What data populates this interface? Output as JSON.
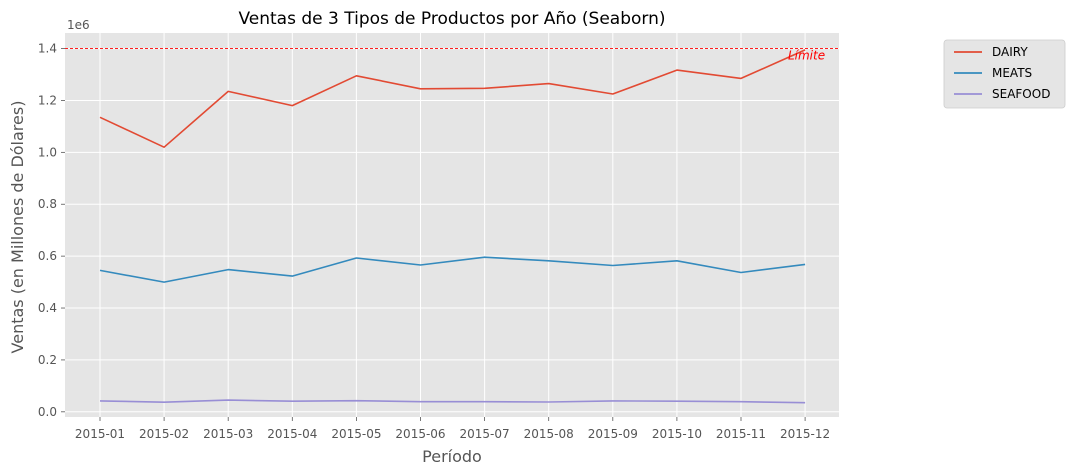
{
  "chart_data": {
    "type": "line",
    "title": "Ventas de 3 Tipos de Productos por Año (Seaborn)",
    "xlabel": "Período",
    "ylabel": "Ventas (en Millones de Dólares)",
    "y_offset_label": "1e6",
    "categories": [
      "2015-01",
      "2015-02",
      "2015-03",
      "2015-04",
      "2015-05",
      "2015-06",
      "2015-07",
      "2015-08",
      "2015-09",
      "2015-10",
      "2015-11",
      "2015-12"
    ],
    "yticks": [
      "0.0",
      "0.2",
      "0.4",
      "0.6",
      "0.8",
      "1.0",
      "1.2",
      "1.4"
    ],
    "ylim": [
      -0.02,
      1.46
    ],
    "grid": true,
    "legend_position": "outside-right-top",
    "series": [
      {
        "name": "DAIRY",
        "color": "#E24A33",
        "values": [
          1.135,
          1.02,
          1.235,
          1.18,
          1.295,
          1.245,
          1.247,
          1.265,
          1.225,
          1.317,
          1.285,
          1.395
        ]
      },
      {
        "name": "MEATS",
        "color": "#348ABD",
        "values": [
          0.545,
          0.5,
          0.548,
          0.523,
          0.593,
          0.566,
          0.596,
          0.582,
          0.564,
          0.582,
          0.537,
          0.568
        ]
      },
      {
        "name": "SEAFOOD",
        "color": "#988ED5",
        "values": [
          0.042,
          0.037,
          0.045,
          0.041,
          0.043,
          0.039,
          0.039,
          0.038,
          0.042,
          0.041,
          0.039,
          0.035
        ]
      }
    ],
    "reference_line": {
      "value": 1.4,
      "label": "Límite",
      "color": "#ff0000"
    }
  }
}
